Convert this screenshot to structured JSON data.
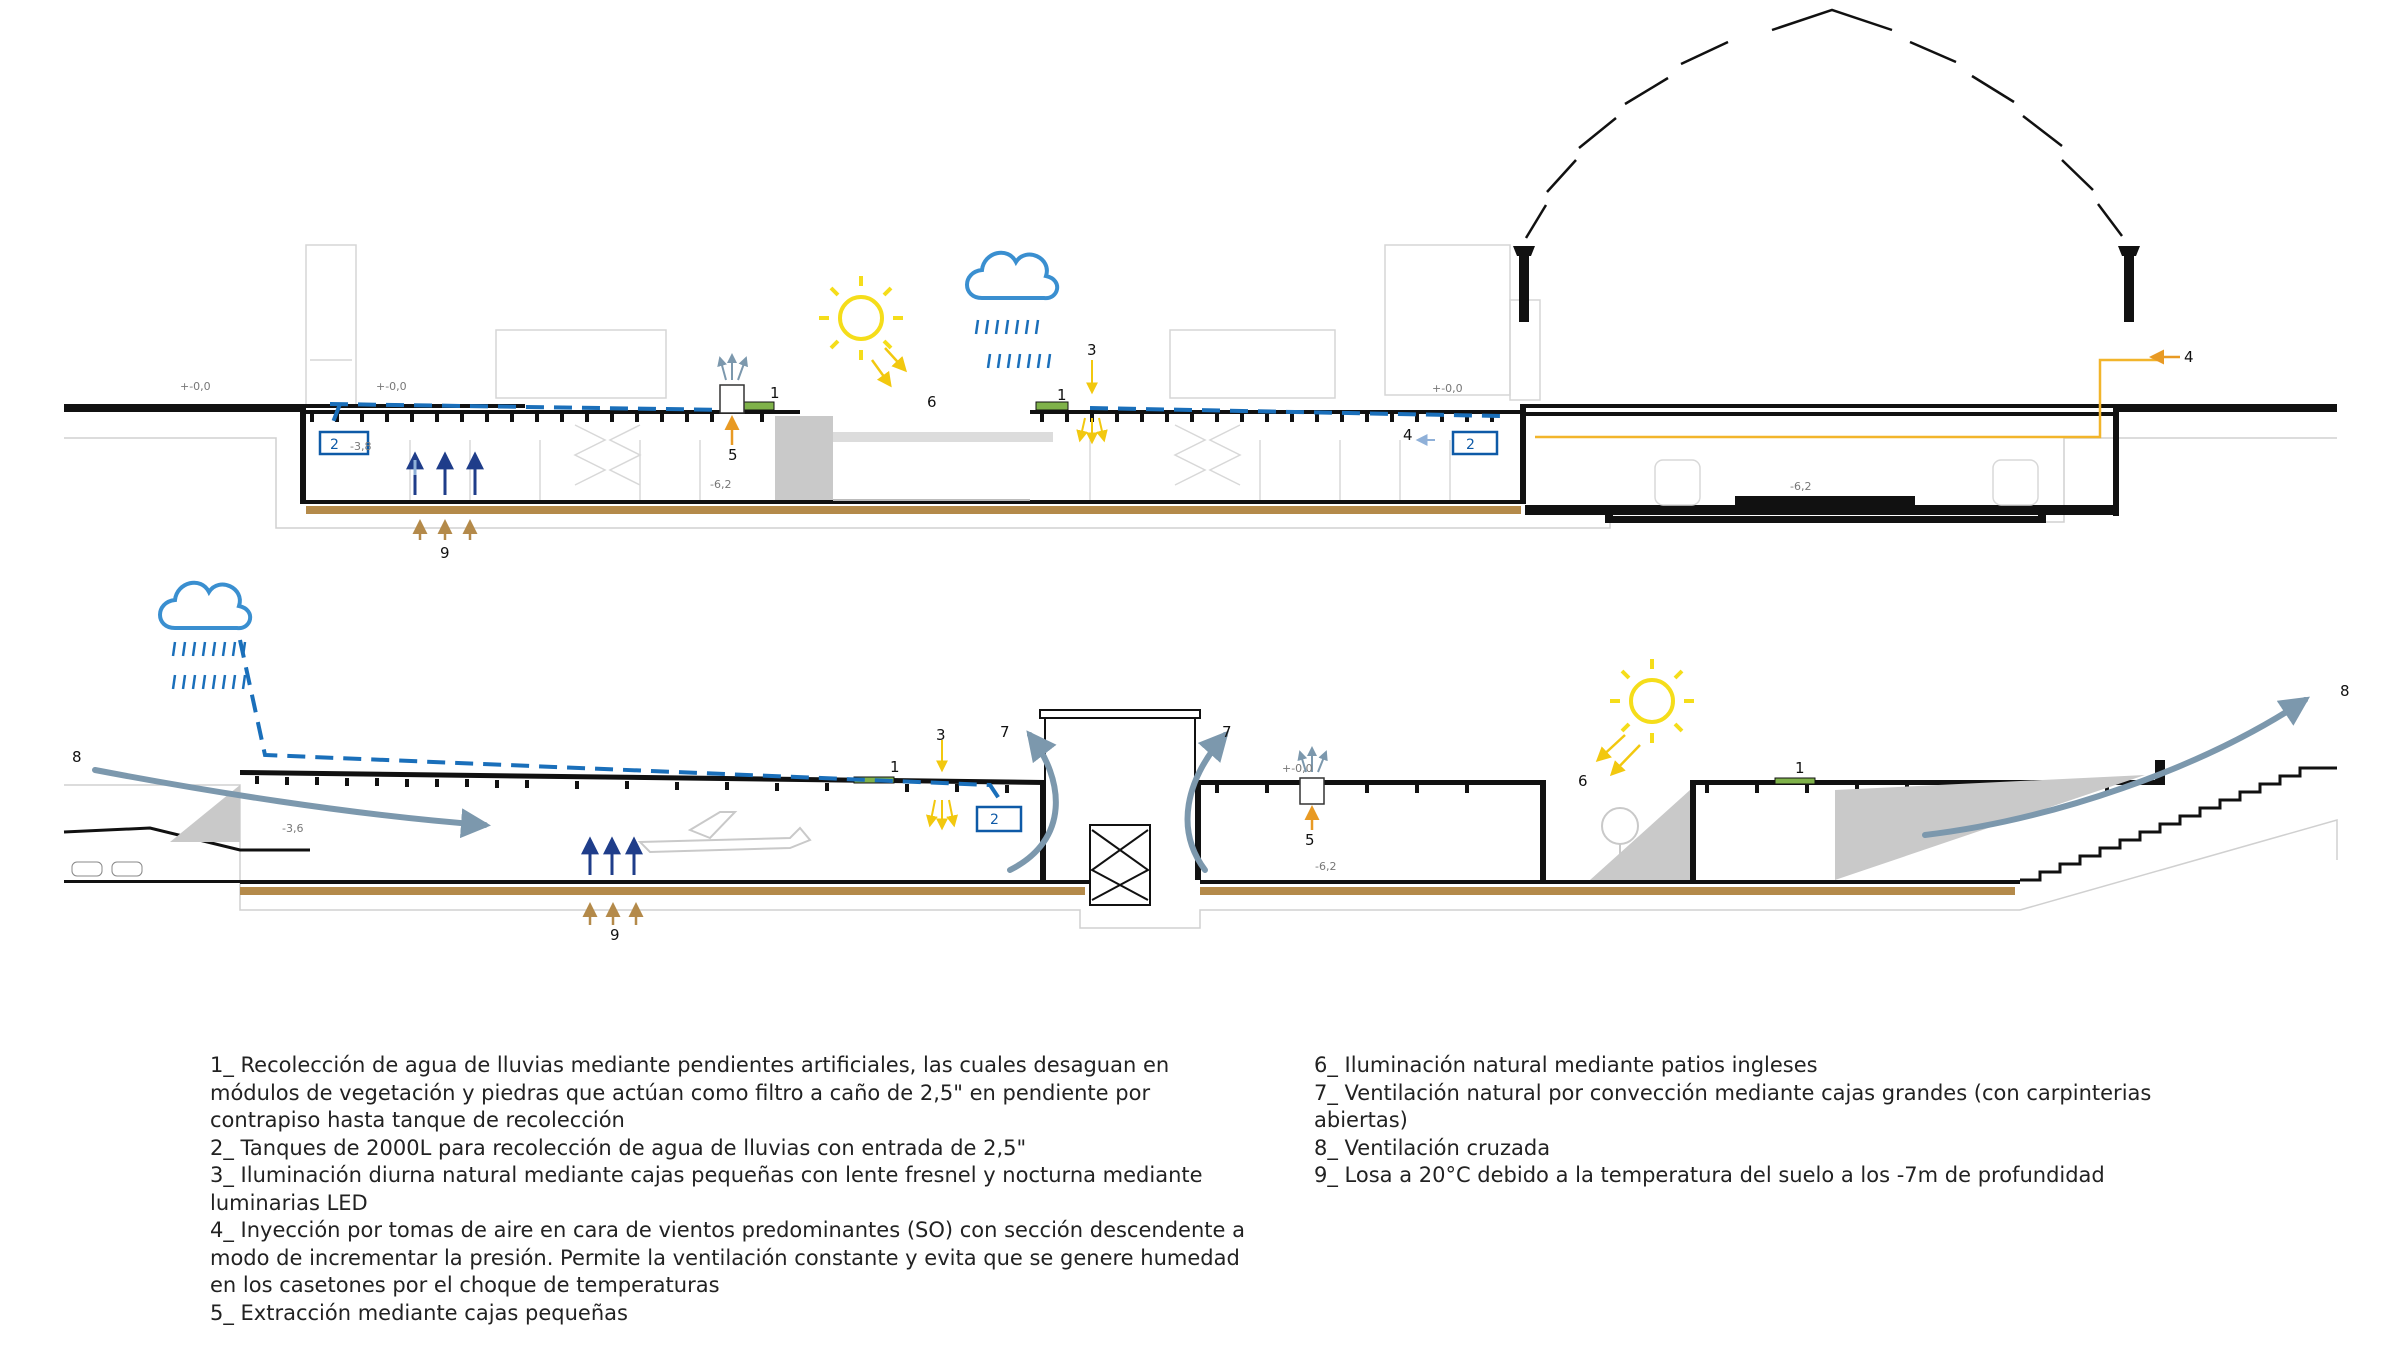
{
  "section_top": {
    "labels": {
      "n1a": "1",
      "n1b": "1",
      "n2a": "2",
      "n2b": "2",
      "n3": "3",
      "n4a": "4",
      "n4b": "4",
      "n5": "5",
      "n6": "6",
      "n9": "9"
    },
    "levels": {
      "l0a": "+-0,0",
      "l0b": "+-0,0",
      "l0c": "+-0,0",
      "lm38": "-3,8",
      "lm62a": "-6,2",
      "lm62b": "-6,2"
    }
  },
  "section_bottom": {
    "labels": {
      "n1a": "1",
      "n1b": "1",
      "n2": "2",
      "n3": "3",
      "n5": "5",
      "n6": "6",
      "n7a": "7",
      "n7b": "7",
      "n8a": "8",
      "n8b": "8",
      "n9": "9"
    },
    "levels": {
      "l0": "+-0,0",
      "lm36": "-3,6",
      "lm62": "-6,2"
    }
  },
  "colors": {
    "water": "#1a6fba",
    "sun": "#f5dd1a",
    "solar_arrow": "#f2c80f",
    "ground": "#b48a4a",
    "air_light": "#8fb0d8",
    "air_dark": "#1f3d8a",
    "wind": "#7c98ad",
    "extraction": "#e89a24",
    "vegetation": "#7fb24a",
    "shadow": "#c9c9c9"
  },
  "legend_left": [
    "1_ Recolección de agua de lluvias mediante pendientes artificiales, las cuales desaguan en módulos de vegetación y piedras que actúan como filtro a caño de 2,5\" en pendiente por contrapiso hasta tanque de recolección",
    "2_ Tanques de 2000L para recolección de agua de lluvias con entrada de 2,5\"",
    "3_ Iluminación diurna natural mediante cajas pequeñas con lente fresnel y nocturna mediante luminarias LED",
    "4_ Inyección por tomas de aire en cara de vientos predominantes (SO) con sección descendente a modo de incrementar la presión. Permite la ventilación constante y evita que se genere humedad en los casetones por el choque de temperaturas",
    "5_ Extracción mediante cajas pequeñas"
  ],
  "legend_right": [
    "6_ Iluminación natural mediante patios ingleses",
    "7_ Ventilación natural por convección mediante cajas grandes (con carpinterias abiertas)",
    "8_ Ventilación cruzada",
    "9_ Losa a 20°C debido a la temperatura del suelo a los -7m de profundidad"
  ]
}
